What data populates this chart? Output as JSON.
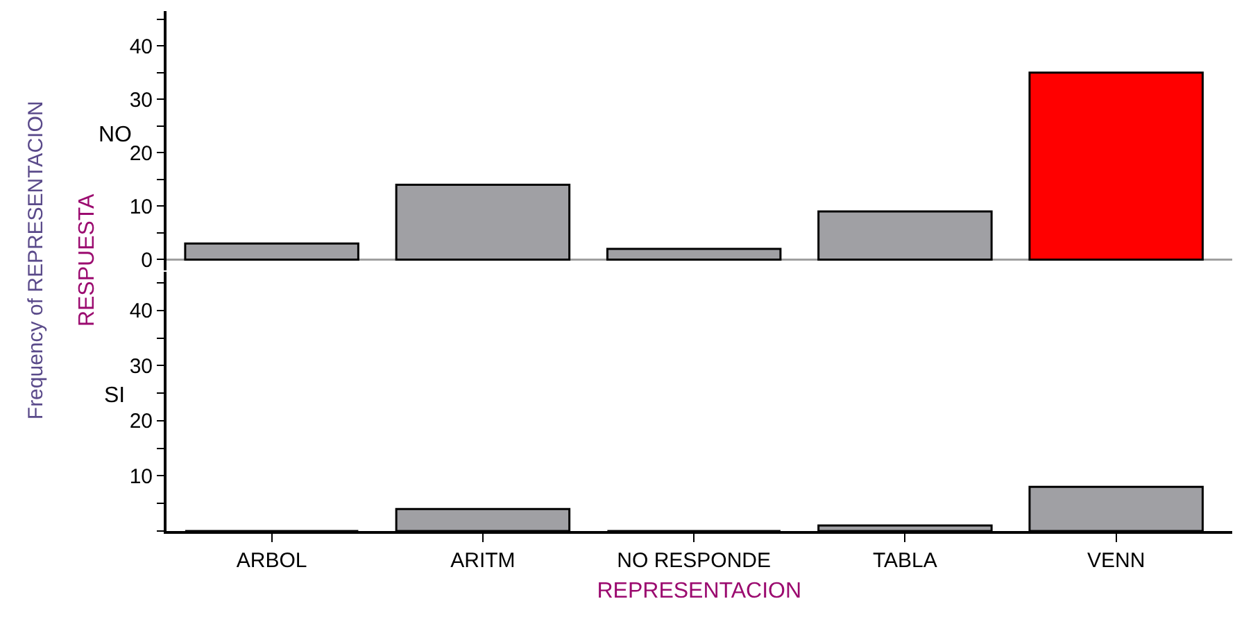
{
  "chart_data": [
    {
      "type": "bar",
      "ylabel": "NO",
      "annotations": [
        "Frequency of REPRESENTACION",
        "RESPUESTA"
      ],
      "categories": [
        null,
        null,
        null,
        null,
        null
      ],
      "values": [
        3,
        14,
        2,
        9,
        35
      ],
      "colors": [
        "#a0a0a4",
        "#a0a0a4",
        "#a0a0a4",
        "#a0a0a4",
        "#ff0000"
      ],
      "ylim": [
        -2,
        46.5
      ],
      "yticks": [
        0,
        {
          "value": 5,
          "label": null
        },
        10,
        {
          "value": 15,
          "label": null
        },
        20,
        {
          "value": 25,
          "label": null
        },
        30,
        {
          "value": 35,
          "label": null
        },
        40,
        {
          "value": 45,
          "label": null
        }
      ],
      "ref_lines": [
        {
          "axis": "y",
          "value": 0,
          "color": "#a0a0a0"
        }
      ],
      "tick_labels": "y"
    },
    {
      "type": "bar",
      "ylabel": "SI",
      "xlabel": "REPRESENTACION",
      "categories": [
        "ARBOL",
        "ARITM",
        "NO RESPONDE",
        "TABLA",
        "VENN"
      ],
      "values": [
        0,
        4,
        0,
        1,
        8
      ],
      "colors": [
        "#000000",
        "#a0a0a4",
        "#000000",
        "#a0a0a4",
        "#a0a0a4"
      ],
      "ylim": [
        0,
        47
      ],
      "yticks": [
        {
          "value": 0,
          "label": null
        },
        {
          "value": 5,
          "label": null
        },
        10,
        {
          "value": 15,
          "label": null
        },
        20,
        {
          "value": 25,
          "label": null
        },
        30,
        {
          "value": 35,
          "label": null
        },
        40,
        {
          "value": 45,
          "label": null
        }
      ]
    }
  ]
}
